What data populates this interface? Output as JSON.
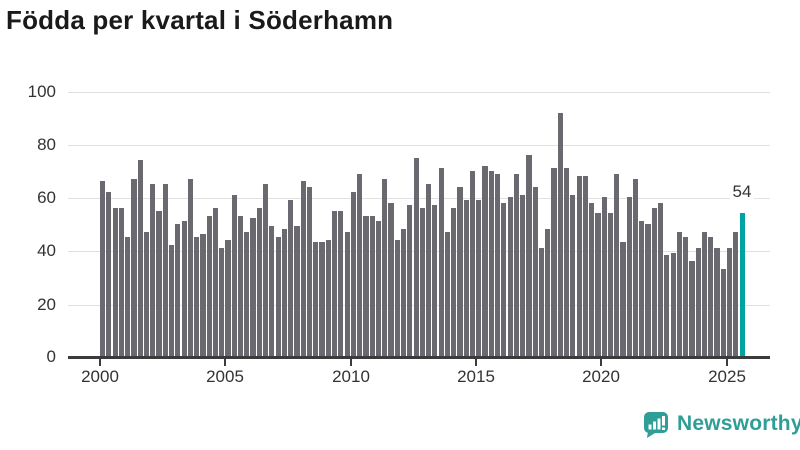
{
  "title": "Födda per kvartal i Söderhamn",
  "chart_data": {
    "type": "bar",
    "title": "Födda per kvartal i Söderhamn",
    "frequency": "quarterly",
    "x_start": "2000 Q1",
    "x_end": "2025 Q3",
    "values": [
      66,
      62,
      56,
      56,
      45,
      67,
      74,
      47,
      65,
      55,
      65,
      42,
      50,
      51,
      67,
      45,
      46,
      53,
      56,
      41,
      44,
      61,
      53,
      47,
      52,
      56,
      65,
      49,
      45,
      48,
      59,
      49,
      66,
      64,
      43,
      43,
      44,
      55,
      55,
      47,
      62,
      69,
      53,
      53,
      51,
      67,
      58,
      44,
      48,
      57,
      75,
      56,
      65,
      57,
      71,
      47,
      56,
      64,
      59,
      70,
      59,
      72,
      70,
      69,
      58,
      60,
      69,
      61,
      76,
      64,
      41,
      48,
      71,
      92,
      71,
      61,
      68,
      68,
      58,
      54,
      60,
      54,
      69,
      43,
      60,
      67,
      51,
      50,
      56,
      58,
      38,
      39,
      47,
      45,
      36,
      41,
      47,
      45,
      41,
      33,
      41,
      47,
      54
    ],
    "highlight_last_value": 54,
    "highlight_label": "54",
    "x_tick_labels": [
      "2000",
      "2005",
      "2010",
      "2015",
      "2020",
      "2025"
    ],
    "y_tick_labels": [
      "100",
      "80",
      "60",
      "40",
      "20",
      "0"
    ],
    "ylim": [
      0,
      100
    ],
    "grid": true,
    "legend": "none",
    "bar_color": "#69696f",
    "highlight_color": "#00a3a3",
    "grid_color": "#e0e0e0",
    "axis_color": "#3b3b3b",
    "label_color": "#333333"
  },
  "branding": {
    "logo_text": "Newsworthy",
    "logo_color": "#2f9e96",
    "logo_icon": "bar-chart-speech-bubble-icon"
  }
}
